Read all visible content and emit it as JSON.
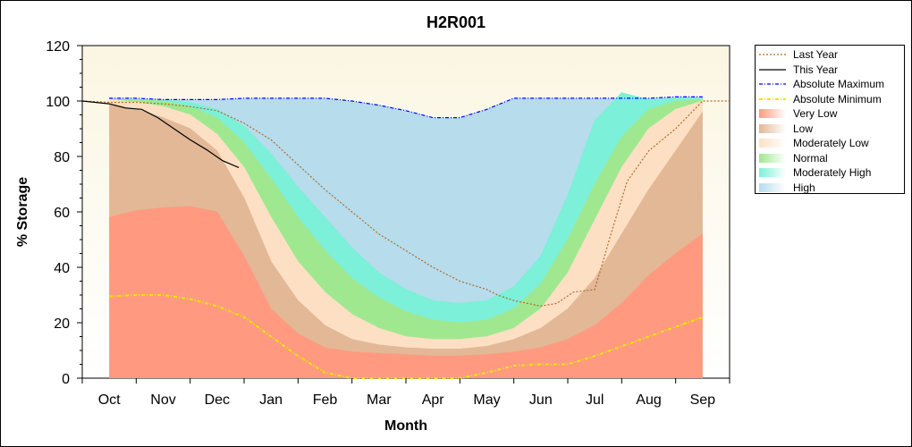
{
  "chart_data": {
    "type": "area",
    "title": "H2R001",
    "xlabel": "Month",
    "ylabel": "% Storage",
    "ylim": [
      0,
      120
    ],
    "yticks": [
      0,
      20,
      40,
      60,
      80,
      100,
      120
    ],
    "categories": [
      "Oct",
      "Nov",
      "Dec",
      "Jan",
      "Feb",
      "Mar",
      "Apr",
      "May",
      "Jun",
      "Jul",
      "Aug",
      "Sep"
    ],
    "x_range": [
      -0.5,
      11.5
    ],
    "legend_position": "right",
    "grid": false,
    "bands": [
      {
        "name": "Very Low",
        "color": "#ff9a80",
        "x": [
          0,
          0.5,
          1,
          1.5,
          2,
          2.5,
          3,
          3.5,
          4,
          4.5,
          5,
          5.5,
          6,
          6.5,
          7,
          7.5,
          8,
          8.5,
          9,
          9.5,
          10,
          10.5,
          11
        ],
        "upper": [
          58,
          60.5,
          61.5,
          62,
          60,
          44,
          25,
          16,
          11,
          9.5,
          9,
          8.5,
          8,
          8,
          8.5,
          9.5,
          11,
          14,
          19,
          27,
          37,
          45,
          52
        ]
      },
      {
        "name": "Low",
        "color": "#e2b896",
        "x": [
          0,
          0.5,
          1,
          1.5,
          2,
          2.5,
          3,
          3.5,
          4,
          4.5,
          5,
          5.5,
          6,
          6.5,
          7,
          7.5,
          8,
          8.5,
          9,
          9.5,
          10,
          10.5,
          11
        ],
        "upper": [
          99,
          97,
          94,
          90,
          82,
          65,
          42,
          28,
          19,
          14,
          12,
          11,
          10.5,
          10.5,
          11.5,
          14,
          18,
          25,
          36,
          52,
          68,
          82,
          96
        ]
      },
      {
        "name": "Moderately Low",
        "color": "#fde0c4",
        "x": [
          0,
          0.5,
          1,
          1.5,
          2,
          2.5,
          3,
          3.5,
          4,
          4.5,
          5,
          5.5,
          6,
          6.5,
          7,
          7.5,
          8,
          8.5,
          9,
          9.5,
          10,
          10.5,
          11
        ],
        "upper": [
          100.5,
          99.5,
          98,
          95,
          88,
          76,
          58,
          42,
          31,
          23,
          18,
          15,
          14,
          14,
          15,
          18,
          25,
          38,
          57,
          76,
          90,
          97,
          100
        ]
      },
      {
        "name": "Normal",
        "color": "#a0e890",
        "x": [
          0,
          0.5,
          1,
          1.5,
          2,
          2.5,
          3,
          3.5,
          4,
          4.5,
          5,
          5.5,
          6,
          6.5,
          7,
          7.5,
          8,
          8.5,
          9,
          9.5,
          10,
          10.5,
          11
        ],
        "upper": [
          100.5,
          100.5,
          100,
          98,
          94,
          85,
          72,
          58,
          46,
          36,
          29,
          24,
          21,
          20,
          21,
          25,
          34,
          50,
          70,
          87,
          97,
          100,
          100.5
        ]
      },
      {
        "name": "Moderately High",
        "color": "#7cf0d8",
        "x": [
          0,
          0.5,
          1,
          1.5,
          2,
          2.5,
          3,
          3.5,
          4,
          4.5,
          5,
          5.5,
          6,
          6.5,
          7,
          7.5,
          8,
          8.5,
          9,
          9.5,
          10,
          10.5,
          11
        ],
        "upper": [
          100.5,
          100.5,
          100.5,
          99.5,
          97,
          91,
          81,
          69,
          58,
          47,
          38,
          32,
          28,
          27,
          28,
          33,
          44,
          66,
          93,
          103,
          100.5,
          101,
          101
        ]
      },
      {
        "name": "High",
        "color": "#b7dcec",
        "x": [
          0,
          0.5,
          1,
          1.5,
          2,
          2.5,
          3,
          3.5,
          4,
          4.5,
          5,
          5.5,
          6,
          6.5,
          7,
          7.5,
          8,
          8.5,
          9,
          9.5,
          10,
          10.5,
          11
        ],
        "upper": [
          101,
          101,
          100.5,
          100.5,
          100.5,
          101,
          101,
          101,
          101,
          100,
          98.5,
          96.5,
          94,
          94,
          97,
          101,
          101,
          101,
          101,
          101,
          101,
          101.5,
          101.5
        ]
      }
    ],
    "series": [
      {
        "name": "Last Year",
        "color": "#b06a2a",
        "style": "dotted",
        "x": [
          -0.5,
          0,
          0.5,
          1,
          1.5,
          2,
          2.5,
          3,
          3.5,
          4,
          4.5,
          5,
          5.5,
          6,
          6.5,
          7,
          7.2,
          7.5,
          8,
          8.3,
          8.6,
          9,
          9.3,
          9.6,
          10,
          10.5,
          11,
          11.5
        ],
        "y": [
          100,
          99.5,
          99.5,
          99,
          98,
          96.5,
          92,
          86,
          77,
          68,
          60,
          52,
          46,
          40,
          35,
          32,
          30,
          28,
          26,
          27,
          31,
          32,
          52,
          71,
          82,
          90,
          100,
          100
        ]
      },
      {
        "name": "This Year",
        "color": "#000000",
        "style": "solid",
        "x": [
          -0.5,
          0,
          0.3,
          0.6,
          0.9,
          1.2,
          1.5,
          1.8,
          2.1,
          2.4
        ],
        "y": [
          100,
          99,
          97.5,
          97,
          94,
          90,
          86,
          82.5,
          78.5,
          76
        ]
      },
      {
        "name": "Absolute Maximum",
        "color": "#0000ff",
        "style": "dashdot",
        "x": [
          0,
          0.5,
          1,
          1.5,
          2,
          2.5,
          3,
          3.5,
          4,
          4.5,
          5,
          5.5,
          6,
          6.5,
          7,
          7.5,
          8,
          8.5,
          9,
          9.5,
          10,
          10.5,
          11
        ],
        "y": [
          101,
          101,
          100.5,
          100.5,
          100.5,
          101,
          101,
          101,
          101,
          100,
          98.5,
          96.5,
          94,
          94,
          97,
          101,
          101,
          101,
          101,
          101,
          101,
          101.5,
          101.5
        ]
      },
      {
        "name": "Absolute Minimum",
        "color": "#e8e800",
        "style": "dashdot",
        "x": [
          0,
          0.5,
          1,
          1.5,
          2,
          2.5,
          3,
          3.5,
          4,
          4.5,
          5,
          5.5,
          6,
          6.5,
          7,
          7.5,
          8,
          8.5,
          9,
          9.5,
          10,
          10.5,
          11
        ],
        "y": [
          29.5,
          30,
          30,
          28.5,
          26,
          22,
          15,
          8,
          2,
          0,
          0,
          0,
          0,
          0,
          2,
          4.5,
          5,
          5,
          8,
          11.5,
          15,
          18.5,
          22
        ]
      }
    ],
    "legend": [
      "Last Year",
      "This Year",
      "Absolute Maximum",
      "Absolute Minimum",
      "Very Low",
      "Low",
      "Moderately Low",
      "Normal",
      "Moderately High",
      "High"
    ]
  }
}
